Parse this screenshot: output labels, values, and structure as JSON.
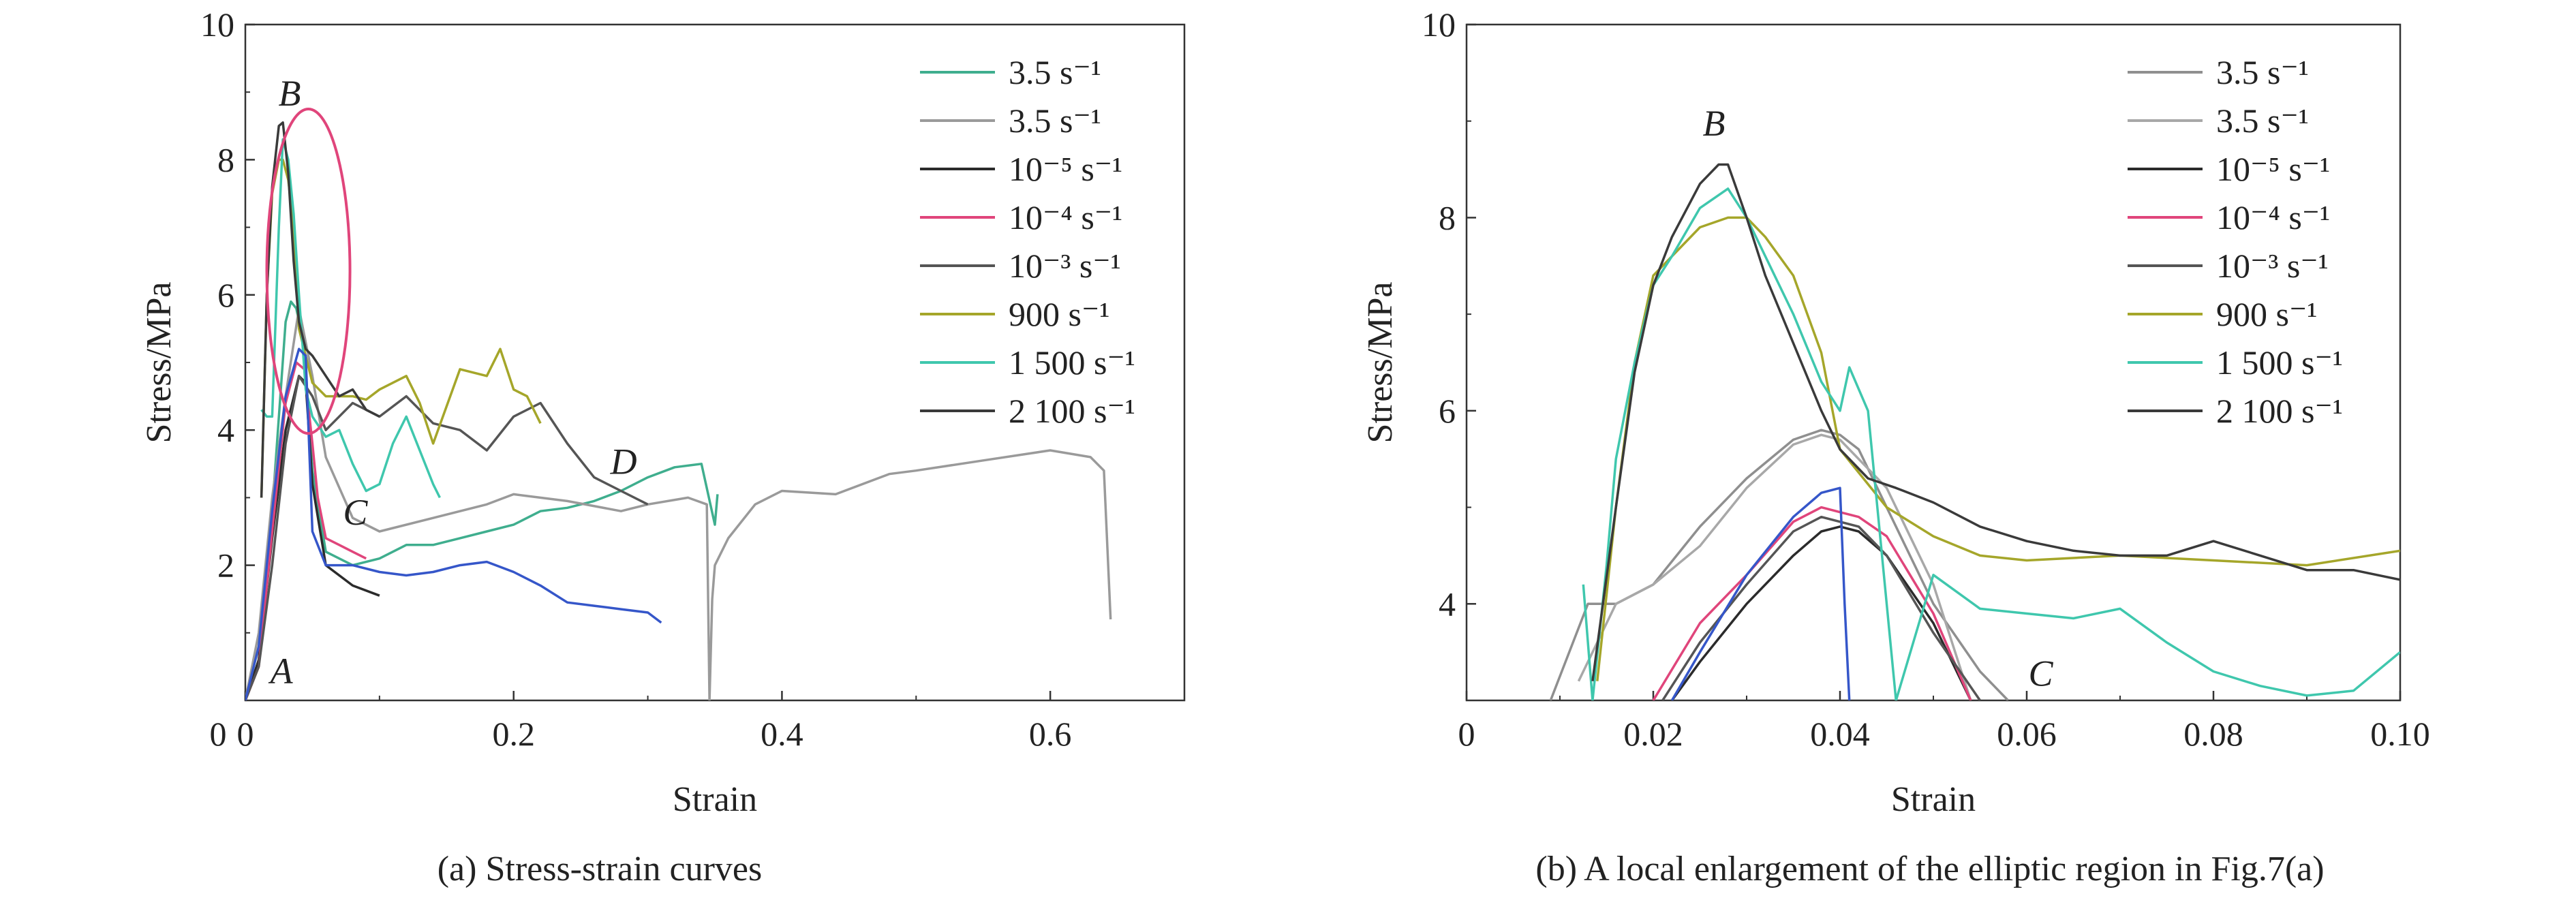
{
  "figure": {
    "panels": [
      {
        "caption": "(a) Stress-strain curves"
      },
      {
        "caption": "(b) A local enlargement of the elliptic region in Fig.7(a)"
      }
    ]
  },
  "chart_data": [
    {
      "type": "line",
      "title": "",
      "xlabel": "Strain",
      "ylabel": "Stress/MPa",
      "xlim": [
        0,
        0.7
      ],
      "ylim": [
        0,
        10
      ],
      "xticks": [
        0,
        0.2,
        0.4,
        0.6
      ],
      "xtick_labels": [
        "0",
        "0.2",
        "0.4",
        "0.6"
      ],
      "yticks": [
        2,
        4,
        6,
        8,
        10
      ],
      "ytick_labels": [
        "2",
        "4",
        "6",
        "8",
        "10"
      ],
      "grid": false,
      "legend_position": "top-right",
      "annotations": [
        {
          "text": "A",
          "x": 0.027,
          "y": 0.25
        },
        {
          "text": "B",
          "x": 0.033,
          "y": 8.8
        },
        {
          "text": "C",
          "x": 0.082,
          "y": 2.6
        },
        {
          "text": "D",
          "x": 0.282,
          "y": 3.35
        }
      ],
      "ellipse": {
        "cx": 0.047,
        "cy": 6.35,
        "rx": 0.031,
        "ry": 2.4,
        "color": "#e0457b"
      },
      "series": [
        {
          "name": "3.5 s⁻¹",
          "color": "#3fae8e",
          "x": [
            0.0,
            0.01,
            0.02,
            0.03,
            0.034,
            0.038,
            0.044,
            0.05,
            0.06,
            0.08,
            0.1,
            0.12,
            0.14,
            0.16,
            0.18,
            0.2,
            0.22,
            0.24,
            0.26,
            0.28,
            0.3,
            0.32,
            0.34,
            0.35,
            0.352
          ],
          "y": [
            0.0,
            0.6,
            2.8,
            5.6,
            5.9,
            5.8,
            5.2,
            3.4,
            2.2,
            2.0,
            2.1,
            2.3,
            2.3,
            2.4,
            2.5,
            2.6,
            2.8,
            2.85,
            2.95,
            3.1,
            3.3,
            3.45,
            3.5,
            2.6,
            3.05
          ]
        },
        {
          "name": "3.5 s⁻¹",
          "color": "#9a9a9a",
          "x": [
            0.0,
            0.01,
            0.02,
            0.03,
            0.04,
            0.05,
            0.06,
            0.08,
            0.1,
            0.14,
            0.18,
            0.2,
            0.24,
            0.28,
            0.3,
            0.33,
            0.344,
            0.346,
            0.348,
            0.35,
            0.36,
            0.38,
            0.4,
            0.44,
            0.48,
            0.5,
            0.55,
            0.6,
            0.63,
            0.64,
            0.645
          ],
          "y": [
            0.0,
            1.0,
            3.0,
            4.5,
            5.8,
            4.8,
            3.6,
            2.7,
            2.5,
            2.7,
            2.9,
            3.05,
            2.95,
            2.8,
            2.9,
            3.0,
            2.9,
            0.0,
            1.5,
            2.0,
            2.4,
            2.9,
            3.1,
            3.05,
            3.35,
            3.4,
            3.55,
            3.7,
            3.6,
            3.4,
            1.2
          ]
        },
        {
          "name": "10⁻⁵ s⁻¹",
          "color": "#2b2b2b",
          "x": [
            0.0,
            0.01,
            0.02,
            0.03,
            0.04,
            0.045,
            0.05,
            0.06,
            0.08,
            0.1
          ],
          "y": [
            0.0,
            0.6,
            2.4,
            4.0,
            4.8,
            4.7,
            3.2,
            2.0,
            1.7,
            1.55
          ]
        },
        {
          "name": "10⁻⁴ s⁻¹",
          "color": "#e0457b",
          "x": [
            0.0,
            0.01,
            0.02,
            0.03,
            0.038,
            0.044,
            0.05,
            0.054,
            0.06,
            0.07,
            0.08,
            0.09
          ],
          "y": [
            0.0,
            0.5,
            2.5,
            4.4,
            5.0,
            4.9,
            3.8,
            3.0,
            2.4,
            2.3,
            2.2,
            2.1
          ]
        },
        {
          "name": "10⁻³ s⁻¹",
          "color": "#555555",
          "x": [
            0.0,
            0.01,
            0.02,
            0.03,
            0.04,
            0.05,
            0.06,
            0.08,
            0.1,
            0.12,
            0.14,
            0.16,
            0.18,
            0.2,
            0.22,
            0.24,
            0.26,
            0.28,
            0.3
          ],
          "y": [
            0.0,
            0.5,
            2.0,
            3.8,
            4.8,
            4.5,
            4.0,
            4.4,
            4.2,
            4.5,
            4.1,
            4.0,
            3.7,
            4.2,
            4.4,
            3.8,
            3.3,
            3.1,
            2.9
          ]
        },
        {
          "name": "900 s⁻¹",
          "color": "#a5a62a",
          "x": [
            0.012,
            0.016,
            0.02,
            0.025,
            0.028,
            0.032,
            0.036,
            0.04,
            0.05,
            0.06,
            0.07,
            0.08,
            0.09,
            0.1,
            0.12,
            0.13,
            0.14,
            0.16,
            0.18,
            0.19,
            0.2,
            0.21,
            0.22
          ],
          "y": [
            3.0,
            6.0,
            7.5,
            8.0,
            8.0,
            7.7,
            7.0,
            5.5,
            4.7,
            4.5,
            4.5,
            4.5,
            4.45,
            4.6,
            4.8,
            4.4,
            3.8,
            4.9,
            4.8,
            5.2,
            4.6,
            4.5,
            4.1
          ]
        },
        {
          "name": "1 500 s⁻¹",
          "color": "#3fc7ad",
          "x": [
            0.012,
            0.016,
            0.02,
            0.025,
            0.028,
            0.032,
            0.036,
            0.04,
            0.045,
            0.05,
            0.06,
            0.07,
            0.08,
            0.09,
            0.1,
            0.11,
            0.12,
            0.13,
            0.14,
            0.145
          ],
          "y": [
            4.3,
            4.2,
            4.2,
            7.0,
            8.3,
            8.0,
            7.2,
            6.0,
            4.6,
            4.2,
            3.9,
            4.0,
            3.5,
            3.1,
            3.2,
            3.8,
            4.2,
            3.7,
            3.2,
            3.0
          ]
        },
        {
          "name": "2 100 s⁻¹",
          "color": "#3a3a3a",
          "x": [
            0.012,
            0.016,
            0.02,
            0.025,
            0.028,
            0.032,
            0.036,
            0.04,
            0.045,
            0.05,
            0.06,
            0.07,
            0.08,
            0.09,
            0.1
          ],
          "y": [
            3.0,
            6.0,
            7.6,
            8.5,
            8.55,
            7.8,
            6.5,
            5.6,
            5.2,
            5.1,
            4.8,
            4.5,
            4.6,
            4.3,
            4.2
          ]
        },
        {
          "name": "",
          "color": "#3556c9",
          "x": [
            0.0,
            0.01,
            0.02,
            0.03,
            0.04,
            0.045,
            0.05,
            0.06,
            0.08,
            0.1,
            0.12,
            0.14,
            0.16,
            0.18,
            0.2,
            0.22,
            0.24,
            0.26,
            0.28,
            0.3,
            0.31
          ],
          "y": [
            0.0,
            0.8,
            2.8,
            4.5,
            5.2,
            5.1,
            2.5,
            2.0,
            2.0,
            1.9,
            1.85,
            1.9,
            2.0,
            2.05,
            1.9,
            1.7,
            1.45,
            1.4,
            1.35,
            1.3,
            1.15
          ]
        }
      ]
    },
    {
      "type": "line",
      "title": "",
      "xlabel": "Strain",
      "ylabel": "Stress/MPa",
      "xlim": [
        0,
        0.1
      ],
      "ylim": [
        3,
        10
      ],
      "xticks": [
        0,
        0.02,
        0.04,
        0.06,
        0.08,
        0.1
      ],
      "xtick_labels": [
        "0",
        "0.02",
        "0.04",
        "0.06",
        "0.08",
        "0.10"
      ],
      "yticks": [
        4,
        6,
        8,
        10
      ],
      "ytick_labels": [
        "4",
        "6",
        "8",
        "10"
      ],
      "grid": false,
      "legend_position": "top-right",
      "annotations": [
        {
          "text": "B",
          "x": 0.0265,
          "y": 8.85
        },
        {
          "text": "C",
          "x": 0.0615,
          "y": 3.15
        }
      ],
      "series": [
        {
          "name": "3.5 s⁻¹",
          "color": "#8f8f8f",
          "x": [
            0.009,
            0.013,
            0.016,
            0.02,
            0.025,
            0.03,
            0.035,
            0.038,
            0.04,
            0.042,
            0.045,
            0.05,
            0.055,
            0.058
          ],
          "y": [
            3.0,
            4.0,
            4.0,
            4.2,
            4.8,
            5.3,
            5.7,
            5.8,
            5.75,
            5.6,
            5.0,
            4.0,
            3.3,
            3.0
          ]
        },
        {
          "name": "3.5 s⁻¹",
          "color": "#a8a8a8",
          "x": [
            0.012,
            0.016,
            0.02,
            0.025,
            0.03,
            0.035,
            0.038,
            0.04,
            0.045,
            0.05,
            0.054
          ],
          "y": [
            3.2,
            4.0,
            4.2,
            4.6,
            5.2,
            5.65,
            5.75,
            5.7,
            5.2,
            4.2,
            3.0
          ]
        },
        {
          "name": "10⁻⁵ s⁻¹",
          "color": "#2b2b2b",
          "x": [
            0.022,
            0.025,
            0.03,
            0.035,
            0.038,
            0.04,
            0.042,
            0.045,
            0.05,
            0.054
          ],
          "y": [
            3.0,
            3.4,
            4.0,
            4.5,
            4.75,
            4.8,
            4.75,
            4.5,
            3.8,
            3.0
          ]
        },
        {
          "name": "10⁻⁴ s⁻¹",
          "color": "#e0457b",
          "x": [
            0.02,
            0.025,
            0.03,
            0.035,
            0.038,
            0.04,
            0.042,
            0.045,
            0.05,
            0.054
          ],
          "y": [
            3.0,
            3.8,
            4.3,
            4.85,
            5.0,
            4.95,
            4.9,
            4.7,
            3.9,
            3.0
          ]
        },
        {
          "name": "10⁻³ s⁻¹",
          "color": "#555555",
          "x": [
            0.021,
            0.025,
            0.03,
            0.035,
            0.038,
            0.04,
            0.042,
            0.045,
            0.05,
            0.055
          ],
          "y": [
            3.0,
            3.6,
            4.2,
            4.75,
            4.9,
            4.85,
            4.8,
            4.5,
            3.7,
            3.0
          ]
        },
        {
          "name": "900 s⁻¹",
          "color": "#a5a62a",
          "x": [
            0.014,
            0.016,
            0.018,
            0.02,
            0.022,
            0.025,
            0.028,
            0.03,
            0.032,
            0.035,
            0.038,
            0.04,
            0.045,
            0.05,
            0.055,
            0.06,
            0.07,
            0.08,
            0.09,
            0.1
          ],
          "y": [
            3.2,
            5.0,
            6.5,
            7.4,
            7.6,
            7.9,
            8.0,
            8.0,
            7.8,
            7.4,
            6.6,
            5.6,
            5.0,
            4.7,
            4.5,
            4.45,
            4.5,
            4.45,
            4.4,
            4.55
          ]
        },
        {
          "name": "1 500 s⁻¹",
          "color": "#3fc7ad",
          "x": [
            0.0125,
            0.0135,
            0.015,
            0.016,
            0.018,
            0.02,
            0.022,
            0.025,
            0.028,
            0.03,
            0.032,
            0.035,
            0.038,
            0.04,
            0.041,
            0.043,
            0.046,
            0.05,
            0.055,
            0.06,
            0.065,
            0.07,
            0.075,
            0.08,
            0.085,
            0.09,
            0.095,
            0.1
          ],
          "y": [
            4.2,
            3.0,
            4.4,
            5.5,
            6.5,
            7.3,
            7.6,
            8.1,
            8.3,
            8.0,
            7.6,
            7.0,
            6.3,
            6.0,
            6.45,
            6.0,
            3.0,
            4.3,
            3.95,
            3.9,
            3.85,
            3.95,
            3.6,
            3.3,
            3.15,
            3.05,
            3.1,
            3.5
          ]
        },
        {
          "name": "2 100 s⁻¹",
          "color": "#3a3a3a",
          "x": [
            0.0135,
            0.016,
            0.018,
            0.02,
            0.022,
            0.025,
            0.027,
            0.028,
            0.03,
            0.032,
            0.035,
            0.038,
            0.04,
            0.043,
            0.046,
            0.05,
            0.055,
            0.06,
            0.065,
            0.07,
            0.075,
            0.08,
            0.085,
            0.09,
            0.095,
            0.1
          ],
          "y": [
            3.2,
            5.0,
            6.4,
            7.3,
            7.8,
            8.35,
            8.55,
            8.55,
            8.0,
            7.4,
            6.7,
            6.0,
            5.6,
            5.3,
            5.2,
            5.05,
            4.8,
            4.65,
            4.55,
            4.5,
            4.5,
            4.65,
            4.5,
            4.35,
            4.35,
            4.25
          ]
        },
        {
          "name": "",
          "color": "#3556c9",
          "x": [
            0.022,
            0.025,
            0.03,
            0.035,
            0.038,
            0.04,
            0.0405,
            0.041
          ],
          "y": [
            3.0,
            3.5,
            4.3,
            4.9,
            5.15,
            5.2,
            4.0,
            3.0
          ]
        }
      ]
    }
  ]
}
